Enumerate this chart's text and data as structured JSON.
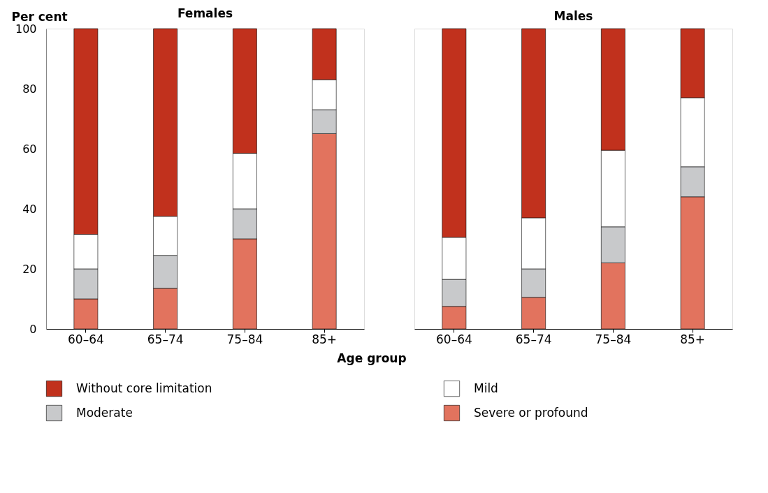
{
  "chart_data": [
    {
      "type": "bar",
      "title": "Females",
      "ylabel": "Per cent",
      "xlabel": "Age group",
      "categories": [
        "60–64",
        "65–74",
        "75–84",
        "85+"
      ],
      "stacked": true,
      "ylim": [
        0,
        100
      ],
      "yticks": [
        0,
        20,
        40,
        60,
        80,
        100
      ],
      "legend": "bottom",
      "series": [
        {
          "name": "Severe or profound",
          "color": "#e2735e",
          "values": [
            10,
            13.5,
            30,
            65
          ]
        },
        {
          "name": "Moderate",
          "color": "#c8c9cb",
          "values": [
            10,
            11,
            10,
            8
          ]
        },
        {
          "name": "Mild",
          "color": "#ffffff",
          "values": [
            11.5,
            13,
            18.5,
            10
          ]
        },
        {
          "name": "Without core limitation",
          "color": "#c1311d",
          "values": [
            68.5,
            62.5,
            41.5,
            17
          ]
        }
      ]
    },
    {
      "type": "bar",
      "title": "Males",
      "categories": [
        "60–64",
        "65–74",
        "75–84",
        "85+"
      ],
      "stacked": true,
      "ylim": [
        0,
        100
      ],
      "yticks": [
        0,
        20,
        40,
        60,
        80,
        100
      ],
      "tick_labels": "x",
      "series": [
        {
          "name": "Severe or profound",
          "color": "#e2735e",
          "values": [
            7.5,
            10.5,
            22,
            44
          ]
        },
        {
          "name": "Moderate",
          "color": "#c8c9cb",
          "values": [
            9,
            9.5,
            12,
            10
          ]
        },
        {
          "name": "Mild",
          "color": "#ffffff",
          "values": [
            14,
            17,
            25.5,
            23
          ]
        },
        {
          "name": "Without core limitation",
          "color": "#c1311d",
          "values": [
            69.5,
            63,
            40.5,
            23
          ]
        }
      ]
    }
  ]
}
